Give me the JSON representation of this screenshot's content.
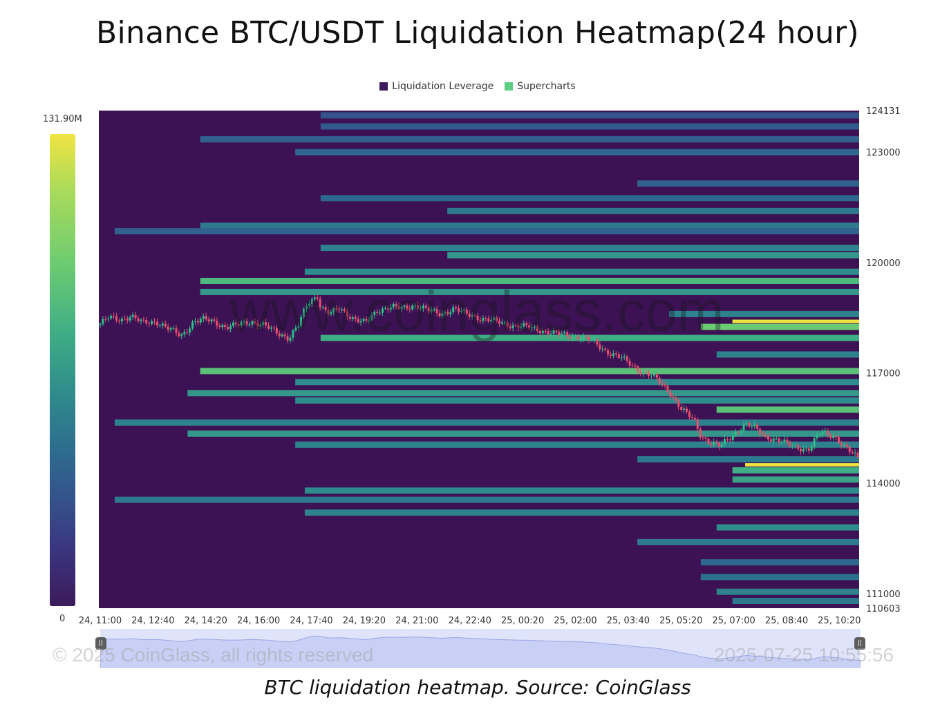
{
  "chart_data": {
    "type": "heatmap",
    "title": "Binance BTC/USDT Liquidation Heatmap(24 hour)",
    "legend": [
      {
        "name": "Liquidation Leverage",
        "color": "#3c1b5b"
      },
      {
        "name": "Supercharts",
        "color": "#5fce84"
      }
    ],
    "legend_position": "top-center",
    "colorscale": {
      "max_label": "131.90M",
      "min_label": "0",
      "max": 131900000,
      "min": 0
    },
    "ylim": [
      110603,
      124131
    ],
    "y_ticks": [
      "124131",
      "123000",
      "120000",
      "117000",
      "114000",
      "111000",
      "110603"
    ],
    "y_tick_values": [
      124131,
      123000,
      120000,
      117000,
      114000,
      111000,
      110603
    ],
    "x_ticks": [
      "24, 11:00",
      "24, 12:40",
      "24, 14:20",
      "24, 16:00",
      "24, 17:40",
      "24, 19:20",
      "24, 21:00",
      "24, 22:40",
      "25, 00:20",
      "25, 02:00",
      "25, 03:40",
      "25, 05:20",
      "25, 07:00",
      "25, 08:40",
      "25, 10:20"
    ],
    "x_hours": [
      0,
      1.667,
      3.333,
      5,
      6.667,
      8.333,
      10,
      11.667,
      13.333,
      15,
      16.667,
      18.333,
      20,
      21.667,
      23.333
    ],
    "x_range_hours": [
      0,
      24
    ],
    "price_series": {
      "name": "BTC/USDT",
      "hours": [
        0,
        0.3,
        0.7,
        1.0,
        1.4,
        1.8,
        2.2,
        2.6,
        3.0,
        3.3,
        3.6,
        4.0,
        4.4,
        4.8,
        5.2,
        5.6,
        6.0,
        6.3,
        6.6,
        6.9,
        7.0,
        7.3,
        7.6,
        8.0,
        8.4,
        8.8,
        9.2,
        9.6,
        10.0,
        10.4,
        10.8,
        11.2,
        11.6,
        12.0,
        12.5,
        13.0,
        13.5,
        14.0,
        14.5,
        15.0,
        15.5,
        16.0,
        16.5,
        17.0,
        17.5,
        18.0,
        18.4,
        18.8,
        19.0,
        19.3,
        19.6,
        20.0,
        20.4,
        20.7,
        21.0,
        21.3,
        21.6,
        22.0,
        22.4,
        22.8,
        23.2,
        23.5,
        23.8,
        24.0
      ],
      "values": [
        118300,
        118500,
        118450,
        118550,
        118350,
        118400,
        118200,
        118000,
        118400,
        118450,
        118400,
        118250,
        118300,
        118400,
        118300,
        118100,
        117950,
        118300,
        118900,
        119100,
        118800,
        118600,
        118750,
        118500,
        118350,
        118700,
        118800,
        118750,
        118850,
        118700,
        118600,
        118750,
        118600,
        118500,
        118400,
        118300,
        118250,
        118150,
        118050,
        118000,
        117900,
        117600,
        117400,
        117100,
        116900,
        116500,
        116000,
        115700,
        115300,
        115100,
        115000,
        115300,
        115600,
        115500,
        115300,
        115200,
        115100,
        115000,
        114900,
        115400,
        115300,
        115000,
        114800,
        114700
      ]
    },
    "liquidation_bands": [
      {
        "price": 124000,
        "start_hour": 7.0,
        "intensity": 0.2
      },
      {
        "price": 123700,
        "start_hour": 7.0,
        "intensity": 0.25
      },
      {
        "price": 123350,
        "start_hour": 3.2,
        "intensity": 0.3
      },
      {
        "price": 123000,
        "start_hour": 6.2,
        "intensity": 0.35
      },
      {
        "price": 122150,
        "start_hour": 17.0,
        "intensity": 0.3
      },
      {
        "price": 121750,
        "start_hour": 7.0,
        "intensity": 0.35
      },
      {
        "price": 121400,
        "start_hour": 11.0,
        "intensity": 0.45
      },
      {
        "price": 121000,
        "start_hour": 3.2,
        "intensity": 0.45
      },
      {
        "price": 120850,
        "start_hour": 0.5,
        "intensity": 0.3
      },
      {
        "price": 120400,
        "start_hour": 7.0,
        "intensity": 0.5
      },
      {
        "price": 120200,
        "start_hour": 11.0,
        "intensity": 0.6
      },
      {
        "price": 119750,
        "start_hour": 6.5,
        "intensity": 0.55
      },
      {
        "price": 119500,
        "start_hour": 3.2,
        "intensity": 0.75
      },
      {
        "price": 119200,
        "start_hour": 3.2,
        "intensity": 0.6
      },
      {
        "price": 118600,
        "start_hour": 18.0,
        "intensity": 0.5
      },
      {
        "price": 118250,
        "start_hour": 19.0,
        "intensity": 0.85
      },
      {
        "price": 117950,
        "start_hour": 7.0,
        "intensity": 0.7
      },
      {
        "price": 117500,
        "start_hour": 19.5,
        "intensity": 0.5
      },
      {
        "price": 117050,
        "start_hour": 3.2,
        "intensity": 0.8
      },
      {
        "price": 116750,
        "start_hour": 6.2,
        "intensity": 0.55
      },
      {
        "price": 116450,
        "start_hour": 2.8,
        "intensity": 0.6
      },
      {
        "price": 116250,
        "start_hour": 6.2,
        "intensity": 0.55
      },
      {
        "price": 116000,
        "start_hour": 19.5,
        "intensity": 0.8
      },
      {
        "price": 115650,
        "start_hour": 0.5,
        "intensity": 0.5
      },
      {
        "price": 115350,
        "start_hour": 2.8,
        "intensity": 0.6
      },
      {
        "price": 115050,
        "start_hour": 6.2,
        "intensity": 0.5
      },
      {
        "price": 114650,
        "start_hour": 17.0,
        "intensity": 0.45
      },
      {
        "price": 114350,
        "start_hour": 20.0,
        "intensity": 0.7
      },
      {
        "price": 114100,
        "start_hour": 20.0,
        "intensity": 0.65
      },
      {
        "price": 113800,
        "start_hour": 6.5,
        "intensity": 0.55
      },
      {
        "price": 113550,
        "start_hour": 0.5,
        "intensity": 0.45
      },
      {
        "price": 113200,
        "start_hour": 6.5,
        "intensity": 0.5
      },
      {
        "price": 112800,
        "start_hour": 19.5,
        "intensity": 0.55
      },
      {
        "price": 112400,
        "start_hour": 17.0,
        "intensity": 0.45
      },
      {
        "price": 111850,
        "start_hour": 19.0,
        "intensity": 0.35
      },
      {
        "price": 111450,
        "start_hour": 19.0,
        "intensity": 0.4
      },
      {
        "price": 111050,
        "start_hour": 19.5,
        "intensity": 0.5
      },
      {
        "price": 110800,
        "start_hour": 20.0,
        "intensity": 0.45
      }
    ],
    "highlight_bands": [
      {
        "price": 118400,
        "start_hour": 20.0,
        "intensity": 1.0
      },
      {
        "price": 114500,
        "start_hour": 20.4,
        "intensity": 1.0
      }
    ],
    "grid": false
  },
  "watermark": "www.coinglass.com",
  "footer": {
    "copyright": "© 2025 CoinGlass, all rights reserved",
    "timestamp": "2025-07-25 10:55:56"
  },
  "caption": "BTC liquidation heatmap. Source: CoinGlass"
}
